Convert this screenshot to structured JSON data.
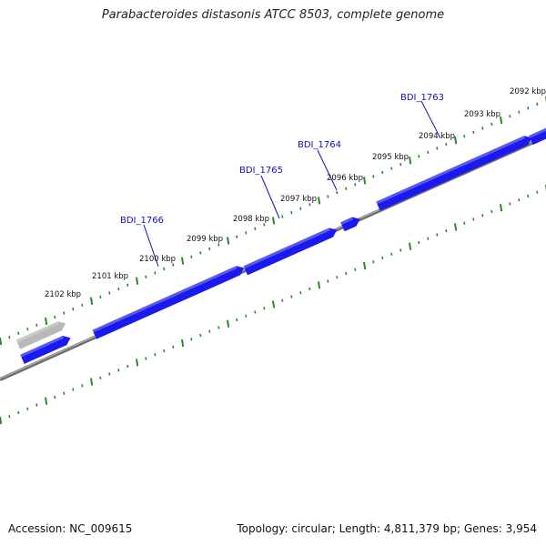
{
  "title": "Parabacteroides distasonis ATCC 8503, complete genome",
  "accession_text": "Accession: NC_009615",
  "summary_text": "Topology: circular; Length: 4,811,379 bp; Genes: 3,954",
  "colors": {
    "gene_forward": "#1a1aee",
    "gene_pseudo": "#b8b8b8",
    "backbone": "#8a8a8a",
    "tick": "#2a8a2a",
    "gene_label": "#1010c0"
  },
  "scale_labels": [
    "2092 kbp",
    "2093 kbp",
    "2094 kbp",
    "2095 kbp",
    "2096 kbp",
    "2097 kbp",
    "2098 kbp",
    "2099 kbp",
    "2100 kbp",
    "2101 kbp",
    "2102 kbp"
  ],
  "gene_labels": [
    "BDI_1763",
    "BDI_1764",
    "BDI_1765",
    "BDI_1766"
  ]
}
